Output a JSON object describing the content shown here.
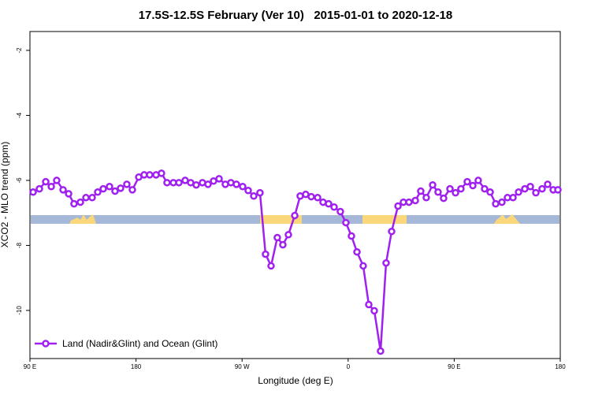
{
  "chart_data": {
    "type": "line",
    "title": "17.5S-12.5S February (Ver 10)   2015-01-01 to 2020-12-18",
    "x_label": "Longitude (deg E)",
    "y_label": "XCO2 - MLO trend (ppm)",
    "xlim": [
      90,
      540
    ],
    "ylim": [
      -11.48,
      -1.42
    ],
    "xticks": [
      {
        "value": 90,
        "label": "90 E"
      },
      180,
      {
        "value": 270,
        "label": "90 W"
      },
      {
        "value": 360,
        "label": "0"
      },
      {
        "value": 450,
        "label": "90 E"
      },
      {
        "value": 540,
        "label": "180"
      }
    ],
    "yticks": [
      -2,
      -4,
      -6,
      -8,
      -10
    ],
    "legend": "bottom-left",
    "x": [
      92.7,
      98.0,
      103.4,
      108.1,
      112.7,
      118.1,
      122.8,
      127.4,
      132.8,
      137.5,
      142.8,
      147.5,
      152.2,
      157.5,
      162.2,
      166.9,
      172.2,
      176.9,
      182.3,
      186.9,
      191.6,
      197.0,
      201.6,
      206.3,
      211.7,
      216.4,
      221.7,
      226.4,
      231.1,
      236.4,
      241.1,
      245.8,
      250.5,
      255.8,
      260.5,
      265.2,
      270.5,
      275.2,
      279.9,
      285.2,
      289.9,
      294.6,
      299.9,
      304.6,
      309.3,
      314.7,
      319.3,
      324.0,
      328.7,
      334.1,
      338.7,
      343.4,
      348.1,
      353.4,
      358.1,
      362.8,
      367.5,
      372.8,
      377.5,
      382.2,
      387.5,
      392.2,
      396.9,
      402.3,
      406.9,
      411.6,
      417.0,
      421.6,
      426.3,
      431.7,
      436.3,
      441.0,
      446.4,
      451.1,
      455.7,
      461.1,
      465.8,
      470.4,
      475.8,
      480.5,
      485.2,
      490.5,
      495.2,
      499.9,
      504.6,
      509.9,
      514.6,
      519.3,
      524.6,
      529.3,
      534.0,
      538.0
    ],
    "series": [
      {
        "name": "Land (Nadir&Glint) and Ocean (Glint)",
        "color": "#a020f0",
        "values": [
          -6.36,
          -6.26,
          -6.04,
          -6.19,
          -6.0,
          -6.29,
          -6.41,
          -6.72,
          -6.67,
          -6.53,
          -6.53,
          -6.36,
          -6.26,
          -6.19,
          -6.33,
          -6.24,
          -6.12,
          -6.29,
          -5.9,
          -5.83,
          -5.83,
          -5.83,
          -5.78,
          -6.07,
          -6.07,
          -6.07,
          -6.0,
          -6.07,
          -6.14,
          -6.07,
          -6.12,
          -6.02,
          -5.95,
          -6.12,
          -6.07,
          -6.12,
          -6.19,
          -6.31,
          -6.48,
          -6.38,
          -8.27,
          -8.63,
          -7.76,
          -7.98,
          -7.67,
          -7.08,
          -6.48,
          -6.43,
          -6.5,
          -6.53,
          -6.67,
          -6.72,
          -6.82,
          -6.96,
          -7.3,
          -7.71,
          -8.2,
          -8.63,
          -9.82,
          -10.01,
          -11.25,
          -8.54,
          -7.57,
          -6.79,
          -6.67,
          -6.67,
          -6.62,
          -6.33,
          -6.53,
          -6.14,
          -6.36,
          -6.55,
          -6.26,
          -6.38,
          -6.26,
          -6.04,
          -6.16,
          -6.0,
          -6.26,
          -6.36,
          -6.72,
          -6.67,
          -6.53,
          -6.53,
          -6.36,
          -6.26,
          -6.19,
          -6.38,
          -6.26,
          -6.12,
          -6.29,
          -6.29
        ]
      }
    ]
  }
}
